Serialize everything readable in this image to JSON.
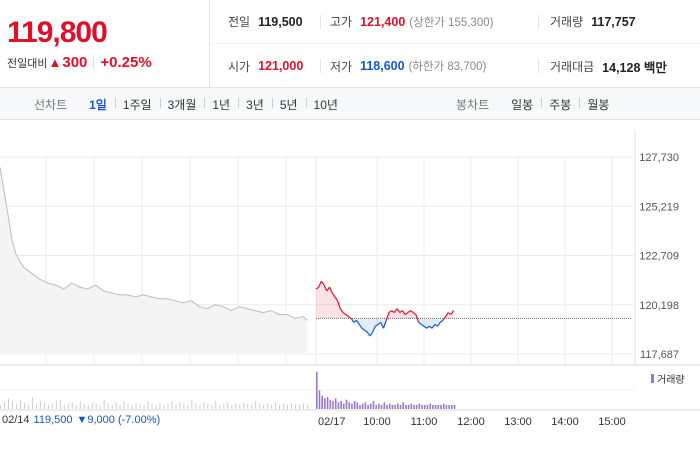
{
  "price": {
    "current": "119,800",
    "change_label": "전일대비",
    "change_arrow": "▲",
    "change_amount": "300",
    "change_pct": "+0.25%"
  },
  "stats": {
    "prev_close": {
      "label": "전일",
      "value": "119,500"
    },
    "high": {
      "label": "고가",
      "value": "121,400",
      "sub": "(상한가 155,300)"
    },
    "volume": {
      "label": "거래량",
      "value": "117,757"
    },
    "open": {
      "label": "시가",
      "value": "121,000"
    },
    "low": {
      "label": "저가",
      "value": "118,600",
      "sub": "(하한가 83,700)"
    },
    "amount": {
      "label": "거래대금",
      "value": "14,128 백만"
    }
  },
  "tabs": {
    "line_label": "선차트",
    "line_options": [
      "1일",
      "1주일",
      "3개월",
      "1년",
      "3년",
      "5년",
      "10년"
    ],
    "line_active": 0,
    "candle_label": "봉차트",
    "candle_options": [
      "일봉",
      "주봉",
      "월봉"
    ]
  },
  "colors": {
    "up": "#e0102b",
    "down": "#1259c3",
    "prev_line": "#bbbbbb",
    "volume": "#9977cc",
    "volume_prev": "#cccccc",
    "grid": "#ebebeb"
  },
  "chart_data": {
    "type": "line",
    "yaxis_ticks": [
      "127,730",
      "125,219",
      "122,709",
      "120,198",
      "117,687"
    ],
    "ylim": [
      117687,
      127730
    ],
    "reference_price": 119500,
    "x_ticks": [
      "10:00",
      "11:00",
      "12:00",
      "13:00",
      "14:00",
      "15:00"
    ],
    "previous_day": {
      "date": "02/14",
      "close": "119,500",
      "change_arrow": "▼",
      "change": "9,000",
      "change_pct": "(-7.00%)",
      "points": [
        [
          0,
          127200
        ],
        [
          1,
          126000
        ],
        [
          2,
          124800
        ],
        [
          3,
          123500
        ],
        [
          4,
          122800
        ],
        [
          5,
          122400
        ],
        [
          6,
          122100
        ],
        [
          8,
          121800
        ],
        [
          10,
          121500
        ],
        [
          12,
          121300
        ],
        [
          14,
          121200
        ],
        [
          16,
          121000
        ],
        [
          18,
          121300
        ],
        [
          20,
          121100
        ],
        [
          22,
          121000
        ],
        [
          24,
          121200
        ],
        [
          26,
          120900
        ],
        [
          28,
          120800
        ],
        [
          30,
          120700
        ],
        [
          32,
          120700
        ],
        [
          34,
          120600
        ],
        [
          36,
          120700
        ],
        [
          38,
          120600
        ],
        [
          40,
          120500
        ],
        [
          42,
          120500
        ],
        [
          44,
          120400
        ],
        [
          46,
          120300
        ],
        [
          48,
          120400
        ],
        [
          50,
          120100
        ],
        [
          52,
          120000
        ],
        [
          54,
          120200
        ],
        [
          56,
          120100
        ],
        [
          58,
          119900
        ],
        [
          60,
          120100
        ],
        [
          62,
          120000
        ],
        [
          64,
          119900
        ],
        [
          66,
          119800
        ],
        [
          68,
          119900
        ],
        [
          70,
          119700
        ],
        [
          72,
          119700
        ],
        [
          74,
          119500
        ],
        [
          76,
          119600
        ],
        [
          77,
          119400
        ]
      ]
    },
    "today": {
      "date": "02/17",
      "points": [
        [
          0,
          121000
        ],
        [
          1,
          121100
        ],
        [
          2,
          121400
        ],
        [
          3,
          121200
        ],
        [
          4,
          120900
        ],
        [
          5,
          121100
        ],
        [
          6,
          120800
        ],
        [
          7,
          120600
        ],
        [
          8,
          120400
        ],
        [
          9,
          120000
        ],
        [
          10,
          119800
        ],
        [
          11,
          119700
        ],
        [
          12,
          119600
        ],
        [
          13,
          119500
        ],
        [
          14,
          119300
        ],
        [
          15,
          119400
        ],
        [
          16,
          119200
        ],
        [
          17,
          119000
        ],
        [
          18,
          118900
        ],
        [
          19,
          118800
        ],
        [
          20,
          118600
        ],
        [
          21,
          118800
        ],
        [
          22,
          119100
        ],
        [
          23,
          119200
        ],
        [
          24,
          119300
        ],
        [
          25,
          119000
        ],
        [
          26,
          119400
        ],
        [
          27,
          119800
        ],
        [
          28,
          119900
        ],
        [
          29,
          119800
        ],
        [
          30,
          120000
        ],
        [
          31,
          119800
        ],
        [
          32,
          119900
        ],
        [
          33,
          119700
        ],
        [
          34,
          119800
        ],
        [
          35,
          119900
        ],
        [
          36,
          119800
        ],
        [
          37,
          119700
        ],
        [
          38,
          119300
        ],
        [
          39,
          119200
        ],
        [
          40,
          119100
        ],
        [
          41,
          119000
        ],
        [
          42,
          119100
        ],
        [
          43,
          119000
        ],
        [
          44,
          119200
        ],
        [
          45,
          119100
        ],
        [
          46,
          119300
        ],
        [
          47,
          119400
        ],
        [
          48,
          119600
        ],
        [
          49,
          119800
        ],
        [
          50,
          119700
        ],
        [
          51,
          119900
        ]
      ]
    },
    "volume_prev": [
      3,
      5,
      8,
      6,
      4,
      7,
      5,
      3,
      9,
      4,
      6,
      5,
      3,
      4,
      6,
      7,
      3,
      4,
      5,
      3,
      6,
      4,
      3,
      5,
      4,
      3,
      7,
      4,
      3,
      5,
      3,
      6,
      4,
      3,
      5,
      4,
      3,
      6,
      4,
      3,
      5,
      3,
      4,
      6,
      3,
      5,
      4,
      3,
      7,
      4,
      3,
      5,
      4,
      3,
      6,
      3,
      4,
      5,
      3,
      4,
      3,
      5,
      4,
      3,
      6,
      4,
      3,
      4,
      3,
      5,
      3,
      4,
      3,
      4,
      3,
      3,
      4,
      3
    ],
    "volume_today": [
      28,
      14,
      10,
      8,
      9,
      7,
      6,
      8,
      5,
      6,
      4,
      7,
      5,
      4,
      6,
      5,
      3,
      4,
      5,
      3,
      4,
      6,
      3,
      4,
      3,
      5,
      3,
      4,
      3,
      3,
      4,
      3,
      5,
      3,
      3,
      4,
      3,
      3,
      4,
      3,
      3,
      3,
      4,
      3,
      3,
      3,
      3,
      4,
      3,
      3,
      3,
      3
    ],
    "volume_legend": "거래량"
  }
}
